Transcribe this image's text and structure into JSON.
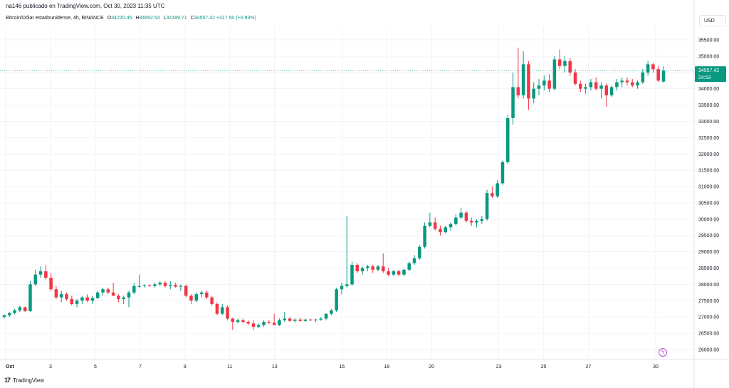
{
  "header": {
    "publisher": "na146 publicado en TradingView.com, Oct 30, 2023 11:35 UTC",
    "symbol_line": "Bitcoin/Dólar estadounidense, 4h, BINANCE",
    "open_label": "O",
    "open": "34220.45",
    "high_label": "H",
    "high": "34692.54",
    "low_label": "L",
    "low": "34189.71",
    "close_label": "C",
    "close": "34557.42",
    "change": "+317.50 (+0.93%)"
  },
  "currency_button": "USD",
  "price_tag": {
    "price": "34557.42",
    "countdown": "24:53"
  },
  "footer": {
    "logo": "17",
    "brand": "TradingView"
  },
  "icons": {
    "flash": "lightning-icon"
  },
  "colors": {
    "up": "#089981",
    "down": "#f23645",
    "grid": "#f0f3fa",
    "last_line": "#089981"
  },
  "chart_data": {
    "type": "candlestick",
    "title": "Bitcoin/Dólar estadounidense, 4h, BINANCE",
    "x_ticks": [
      "Oct",
      "3",
      "5",
      "7",
      "9",
      "11",
      "13",
      "16",
      "18",
      "20",
      "23",
      "25",
      "27",
      "30"
    ],
    "x_tick_days": [
      1,
      3,
      5,
      7,
      9,
      11,
      13,
      16,
      18,
      20,
      23,
      25,
      27,
      30
    ],
    "y_ticks": [
      26000,
      26500,
      27000,
      27500,
      28000,
      28500,
      29000,
      29500,
      30000,
      30500,
      31000,
      31500,
      32000,
      32500,
      33000,
      33500,
      34000,
      34500,
      35000,
      35500
    ],
    "y_tick_labels": [
      "26000.00",
      "26500.00",
      "27000.00",
      "27500.00",
      "28000.00",
      "28500.00",
      "29000.00",
      "29500.00",
      "30000.00",
      "30500.00",
      "31000.00",
      "31500.00",
      "32000.00",
      "32500.00",
      "33000.00",
      "33500.00",
      "34000.00",
      "34500.00",
      "35000.00",
      "35500.00"
    ],
    "ylim": [
      25800,
      35900
    ],
    "last_price": 34557.42,
    "grid": true,
    "candles": [
      {
        "o": 27000,
        "h": 27080,
        "l": 26950,
        "c": 27050
      },
      {
        "o": 27050,
        "h": 27150,
        "l": 27000,
        "c": 27120
      },
      {
        "o": 27120,
        "h": 27250,
        "l": 27080,
        "c": 27200
      },
      {
        "o": 27200,
        "h": 27350,
        "l": 27150,
        "c": 27300
      },
      {
        "o": 27300,
        "h": 27320,
        "l": 27150,
        "c": 27180
      },
      {
        "o": 27180,
        "h": 28100,
        "l": 27150,
        "c": 28000
      },
      {
        "o": 28000,
        "h": 28450,
        "l": 27950,
        "c": 28300
      },
      {
        "o": 28300,
        "h": 28550,
        "l": 28200,
        "c": 28400
      },
      {
        "o": 28400,
        "h": 28600,
        "l": 28150,
        "c": 28200
      },
      {
        "o": 28200,
        "h": 28350,
        "l": 27800,
        "c": 27850
      },
      {
        "o": 27850,
        "h": 27950,
        "l": 27550,
        "c": 27600
      },
      {
        "o": 27600,
        "h": 27800,
        "l": 27450,
        "c": 27700
      },
      {
        "o": 27700,
        "h": 27750,
        "l": 27500,
        "c": 27550
      },
      {
        "o": 27550,
        "h": 27650,
        "l": 27350,
        "c": 27400
      },
      {
        "o": 27400,
        "h": 27550,
        "l": 27300,
        "c": 27500
      },
      {
        "o": 27500,
        "h": 27650,
        "l": 27400,
        "c": 27600
      },
      {
        "o": 27600,
        "h": 27700,
        "l": 27450,
        "c": 27500
      },
      {
        "o": 27500,
        "h": 27650,
        "l": 27400,
        "c": 27580
      },
      {
        "o": 27580,
        "h": 27800,
        "l": 27550,
        "c": 27750
      },
      {
        "o": 27750,
        "h": 27900,
        "l": 27650,
        "c": 27850
      },
      {
        "o": 27850,
        "h": 27900,
        "l": 27700,
        "c": 27750
      },
      {
        "o": 27750,
        "h": 28050,
        "l": 27700,
        "c": 27650
      },
      {
        "o": 27650,
        "h": 27700,
        "l": 27450,
        "c": 27550
      },
      {
        "o": 27550,
        "h": 27650,
        "l": 27400,
        "c": 27600
      },
      {
        "o": 27600,
        "h": 27800,
        "l": 27300,
        "c": 27750
      },
      {
        "o": 27750,
        "h": 28050,
        "l": 27700,
        "c": 27950
      },
      {
        "o": 27950,
        "h": 28300,
        "l": 27900,
        "c": 27950
      },
      {
        "o": 27950,
        "h": 28000,
        "l": 27900,
        "c": 27970
      },
      {
        "o": 27970,
        "h": 28000,
        "l": 27920,
        "c": 27950
      },
      {
        "o": 27950,
        "h": 28050,
        "l": 27900,
        "c": 28000
      },
      {
        "o": 28000,
        "h": 28100,
        "l": 27950,
        "c": 28050
      },
      {
        "o": 28050,
        "h": 28100,
        "l": 27900,
        "c": 27950
      },
      {
        "o": 27950,
        "h": 28100,
        "l": 27850,
        "c": 27980
      },
      {
        "o": 27980,
        "h": 28050,
        "l": 27900,
        "c": 27930
      },
      {
        "o": 27930,
        "h": 28000,
        "l": 27800,
        "c": 27950
      },
      {
        "o": 27950,
        "h": 28000,
        "l": 27600,
        "c": 27650
      },
      {
        "o": 27650,
        "h": 27700,
        "l": 27400,
        "c": 27500
      },
      {
        "o": 27500,
        "h": 27750,
        "l": 27450,
        "c": 27700
      },
      {
        "o": 27700,
        "h": 27800,
        "l": 27600,
        "c": 27750
      },
      {
        "o": 27750,
        "h": 27800,
        "l": 27550,
        "c": 27600
      },
      {
        "o": 27600,
        "h": 27650,
        "l": 27350,
        "c": 27400
      },
      {
        "o": 27400,
        "h": 27450,
        "l": 27050,
        "c": 27100
      },
      {
        "o": 27100,
        "h": 27400,
        "l": 27050,
        "c": 27300
      },
      {
        "o": 27300,
        "h": 27350,
        "l": 26900,
        "c": 26950
      },
      {
        "o": 26950,
        "h": 26980,
        "l": 26600,
        "c": 26850
      },
      {
        "o": 26850,
        "h": 26950,
        "l": 26800,
        "c": 26900
      },
      {
        "o": 26900,
        "h": 26950,
        "l": 26800,
        "c": 26850
      },
      {
        "o": 26850,
        "h": 26900,
        "l": 26750,
        "c": 26800
      },
      {
        "o": 26800,
        "h": 26900,
        "l": 26600,
        "c": 26700
      },
      {
        "o": 26700,
        "h": 26800,
        "l": 26650,
        "c": 26750
      },
      {
        "o": 26750,
        "h": 26900,
        "l": 26700,
        "c": 26850
      },
      {
        "o": 26850,
        "h": 26900,
        "l": 26780,
        "c": 26820
      },
      {
        "o": 26820,
        "h": 27100,
        "l": 26780,
        "c": 26750
      },
      {
        "o": 26750,
        "h": 26950,
        "l": 26720,
        "c": 26900
      },
      {
        "o": 26900,
        "h": 27150,
        "l": 26850,
        "c": 26950
      },
      {
        "o": 26950,
        "h": 27000,
        "l": 26850,
        "c": 26880
      },
      {
        "o": 26880,
        "h": 26950,
        "l": 26830,
        "c": 26920
      },
      {
        "o": 26920,
        "h": 26980,
        "l": 26850,
        "c": 26880
      },
      {
        "o": 26880,
        "h": 26950,
        "l": 26850,
        "c": 26920
      },
      {
        "o": 26920,
        "h": 26950,
        "l": 26870,
        "c": 26900
      },
      {
        "o": 26900,
        "h": 26950,
        "l": 26850,
        "c": 26920
      },
      {
        "o": 26920,
        "h": 27000,
        "l": 26880,
        "c": 26950
      },
      {
        "o": 26950,
        "h": 27100,
        "l": 26900,
        "c": 27100
      },
      {
        "o": 27100,
        "h": 27250,
        "l": 27050,
        "c": 27200
      },
      {
        "o": 27200,
        "h": 27900,
        "l": 27150,
        "c": 27850
      },
      {
        "o": 27850,
        "h": 28050,
        "l": 27700,
        "c": 27950
      },
      {
        "o": 27950,
        "h": 30100,
        "l": 27900,
        "c": 28000
      },
      {
        "o": 28000,
        "h": 28700,
        "l": 27950,
        "c": 28600
      },
      {
        "o": 28600,
        "h": 28650,
        "l": 28350,
        "c": 28400
      },
      {
        "o": 28400,
        "h": 28550,
        "l": 28300,
        "c": 28500
      },
      {
        "o": 28500,
        "h": 28600,
        "l": 28400,
        "c": 28550
      },
      {
        "o": 28550,
        "h": 28600,
        "l": 28350,
        "c": 28450
      },
      {
        "o": 28450,
        "h": 28600,
        "l": 28400,
        "c": 28550
      },
      {
        "o": 28550,
        "h": 28950,
        "l": 28350,
        "c": 28400
      },
      {
        "o": 28400,
        "h": 28500,
        "l": 28250,
        "c": 28300
      },
      {
        "o": 28300,
        "h": 28450,
        "l": 28250,
        "c": 28400
      },
      {
        "o": 28400,
        "h": 28450,
        "l": 28250,
        "c": 28300
      },
      {
        "o": 28300,
        "h": 28500,
        "l": 28250,
        "c": 28450
      },
      {
        "o": 28450,
        "h": 28700,
        "l": 28400,
        "c": 28650
      },
      {
        "o": 28650,
        "h": 28900,
        "l": 28600,
        "c": 28800
      },
      {
        "o": 28800,
        "h": 29200,
        "l": 28750,
        "c": 29150
      },
      {
        "o": 29150,
        "h": 29900,
        "l": 29100,
        "c": 29800
      },
      {
        "o": 29800,
        "h": 30200,
        "l": 29750,
        "c": 29900
      },
      {
        "o": 29900,
        "h": 30050,
        "l": 29650,
        "c": 29700
      },
      {
        "o": 29700,
        "h": 29800,
        "l": 29500,
        "c": 29600
      },
      {
        "o": 29600,
        "h": 29800,
        "l": 29550,
        "c": 29750
      },
      {
        "o": 29750,
        "h": 29900,
        "l": 29650,
        "c": 29850
      },
      {
        "o": 29850,
        "h": 30150,
        "l": 29800,
        "c": 30050
      },
      {
        "o": 30050,
        "h": 30350,
        "l": 30000,
        "c": 30200
      },
      {
        "o": 30200,
        "h": 30250,
        "l": 29900,
        "c": 29950
      },
      {
        "o": 29950,
        "h": 30050,
        "l": 29800,
        "c": 29900
      },
      {
        "o": 29900,
        "h": 30000,
        "l": 29750,
        "c": 29950
      },
      {
        "o": 29950,
        "h": 30100,
        "l": 29850,
        "c": 30000
      },
      {
        "o": 30000,
        "h": 30900,
        "l": 29950,
        "c": 30800
      },
      {
        "o": 30800,
        "h": 31000,
        "l": 30650,
        "c": 30700
      },
      {
        "o": 30700,
        "h": 31200,
        "l": 30650,
        "c": 31100
      },
      {
        "o": 31100,
        "h": 31800,
        "l": 31050,
        "c": 31750
      },
      {
        "o": 31750,
        "h": 33200,
        "l": 31700,
        "c": 33100
      },
      {
        "o": 33100,
        "h": 34500,
        "l": 32900,
        "c": 34050
      },
      {
        "o": 34050,
        "h": 35250,
        "l": 33700,
        "c": 33800
      },
      {
        "o": 33800,
        "h": 35150,
        "l": 33700,
        "c": 34750
      },
      {
        "o": 34750,
        "h": 34850,
        "l": 33350,
        "c": 33700
      },
      {
        "o": 33700,
        "h": 34200,
        "l": 33550,
        "c": 34000
      },
      {
        "o": 34000,
        "h": 34300,
        "l": 33800,
        "c": 34100
      },
      {
        "o": 34100,
        "h": 34400,
        "l": 33950,
        "c": 34250
      },
      {
        "o": 34250,
        "h": 34450,
        "l": 33900,
        "c": 34000
      },
      {
        "o": 34000,
        "h": 35000,
        "l": 33950,
        "c": 34900
      },
      {
        "o": 34900,
        "h": 35200,
        "l": 34600,
        "c": 34700
      },
      {
        "o": 34700,
        "h": 35000,
        "l": 34500,
        "c": 34850
      },
      {
        "o": 34850,
        "h": 34950,
        "l": 34400,
        "c": 34500
      },
      {
        "o": 34500,
        "h": 34600,
        "l": 34100,
        "c": 34150
      },
      {
        "o": 34150,
        "h": 34250,
        "l": 33900,
        "c": 34000
      },
      {
        "o": 34000,
        "h": 34150,
        "l": 33850,
        "c": 34050
      },
      {
        "o": 34050,
        "h": 34300,
        "l": 33950,
        "c": 34200
      },
      {
        "o": 34200,
        "h": 34350,
        "l": 33950,
        "c": 34000
      },
      {
        "o": 34000,
        "h": 34200,
        "l": 33700,
        "c": 34100
      },
      {
        "o": 34100,
        "h": 34150,
        "l": 33450,
        "c": 33800
      },
      {
        "o": 33800,
        "h": 34100,
        "l": 33750,
        "c": 34050
      },
      {
        "o": 34050,
        "h": 34300,
        "l": 33950,
        "c": 34200
      },
      {
        "o": 34200,
        "h": 34350,
        "l": 34050,
        "c": 34250
      },
      {
        "o": 34250,
        "h": 34350,
        "l": 34100,
        "c": 34200
      },
      {
        "o": 34200,
        "h": 34300,
        "l": 34050,
        "c": 34100
      },
      {
        "o": 34100,
        "h": 34250,
        "l": 34000,
        "c": 34200
      },
      {
        "o": 34200,
        "h": 34600,
        "l": 34150,
        "c": 34500
      },
      {
        "o": 34500,
        "h": 34850,
        "l": 34400,
        "c": 34750
      },
      {
        "o": 34750,
        "h": 34800,
        "l": 34500,
        "c": 34600
      },
      {
        "o": 34600,
        "h": 34700,
        "l": 34200,
        "c": 34250
      },
      {
        "o": 34220,
        "h": 34690,
        "l": 34190,
        "c": 34557
      }
    ]
  }
}
